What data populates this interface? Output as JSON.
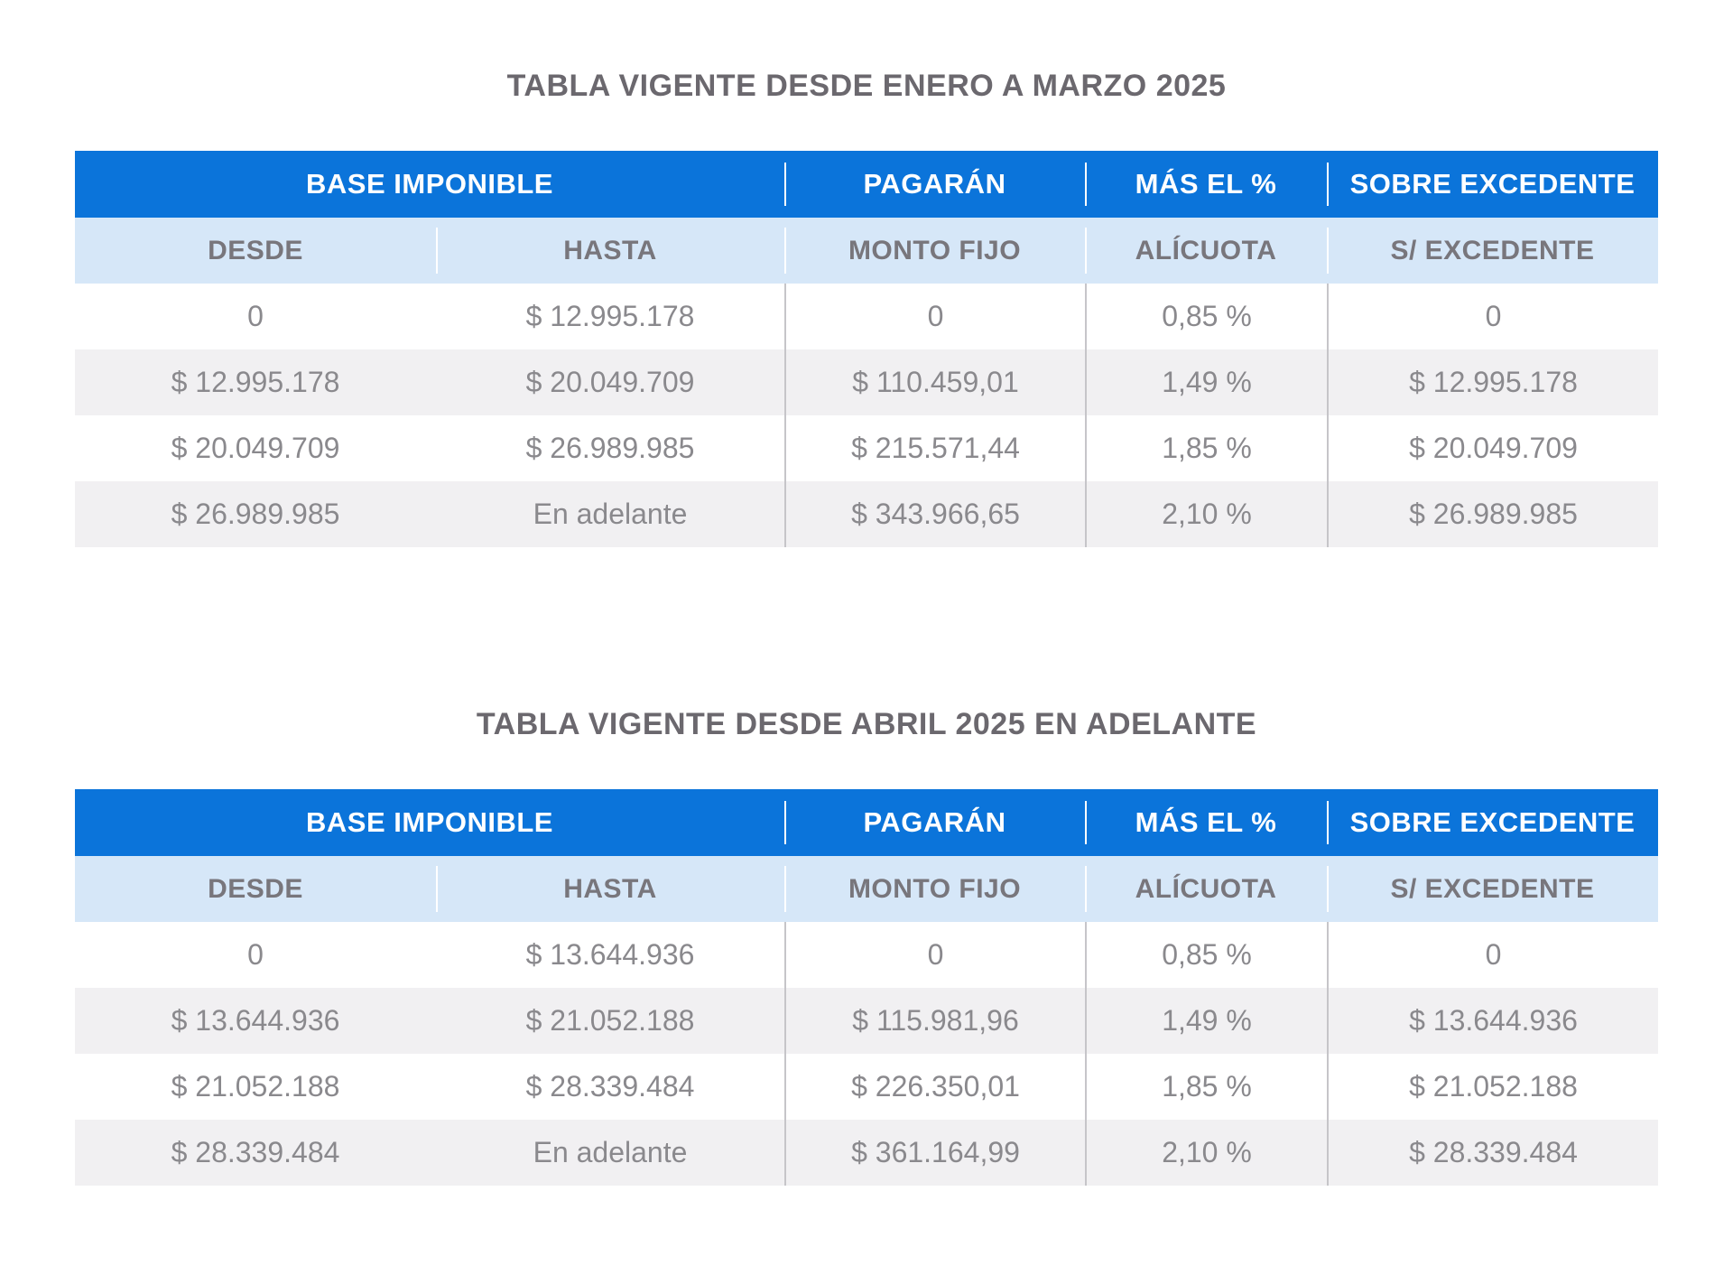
{
  "colors": {
    "header_bg": "#0b74da",
    "subheader_bg": "#d6e7f8",
    "row_alt_bg": "#f1f0f2",
    "data_text": "#8a898d",
    "title_text": "#6b686e",
    "header_text": "#ffffff"
  },
  "chart_data": [
    {
      "type": "table",
      "title": "TABLA VIGENTE DESDE ENERO A MARZO 2025",
      "column_groups": [
        "BASE IMPONIBLE",
        "PAGARÁN",
        "MÁS EL %",
        "SOBRE EXCEDENTE"
      ],
      "columns": [
        "DESDE",
        "HASTA",
        "MONTO FIJO",
        "ALÍCUOTA",
        "S/ EXCEDENTE"
      ],
      "rows": [
        [
          "0",
          "$ 12.995.178",
          "0",
          "0,85 %",
          "0"
        ],
        [
          "$ 12.995.178",
          "$ 20.049.709",
          "$ 110.459,01",
          "1,49 %",
          "$ 12.995.178"
        ],
        [
          "$ 20.049.709",
          "$ 26.989.985",
          "$ 215.571,44",
          "1,85 %",
          "$ 20.049.709"
        ],
        [
          "$ 26.989.985",
          "En adelante",
          "$ 343.966,65",
          "2,10 %",
          "$ 26.989.985"
        ]
      ]
    },
    {
      "type": "table",
      "title": "TABLA VIGENTE DESDE ABRIL 2025 EN ADELANTE",
      "column_groups": [
        "BASE IMPONIBLE",
        "PAGARÁN",
        "MÁS EL %",
        "SOBRE EXCEDENTE"
      ],
      "columns": [
        "DESDE",
        "HASTA",
        "MONTO FIJO",
        "ALÍCUOTA",
        "S/ EXCEDENTE"
      ],
      "rows": [
        [
          "0",
          "$ 13.644.936",
          "0",
          "0,85 %",
          "0"
        ],
        [
          "$ 13.644.936",
          "$ 21.052.188",
          "$ 115.981,96",
          "1,49 %",
          "$ 13.644.936"
        ],
        [
          "$ 21.052.188",
          "$ 28.339.484",
          "$ 226.350,01",
          "1,85 %",
          "$ 21.052.188"
        ],
        [
          "$ 28.339.484",
          "En adelante",
          "$ 361.164,99",
          "2,10 %",
          "$ 28.339.484"
        ]
      ]
    }
  ]
}
